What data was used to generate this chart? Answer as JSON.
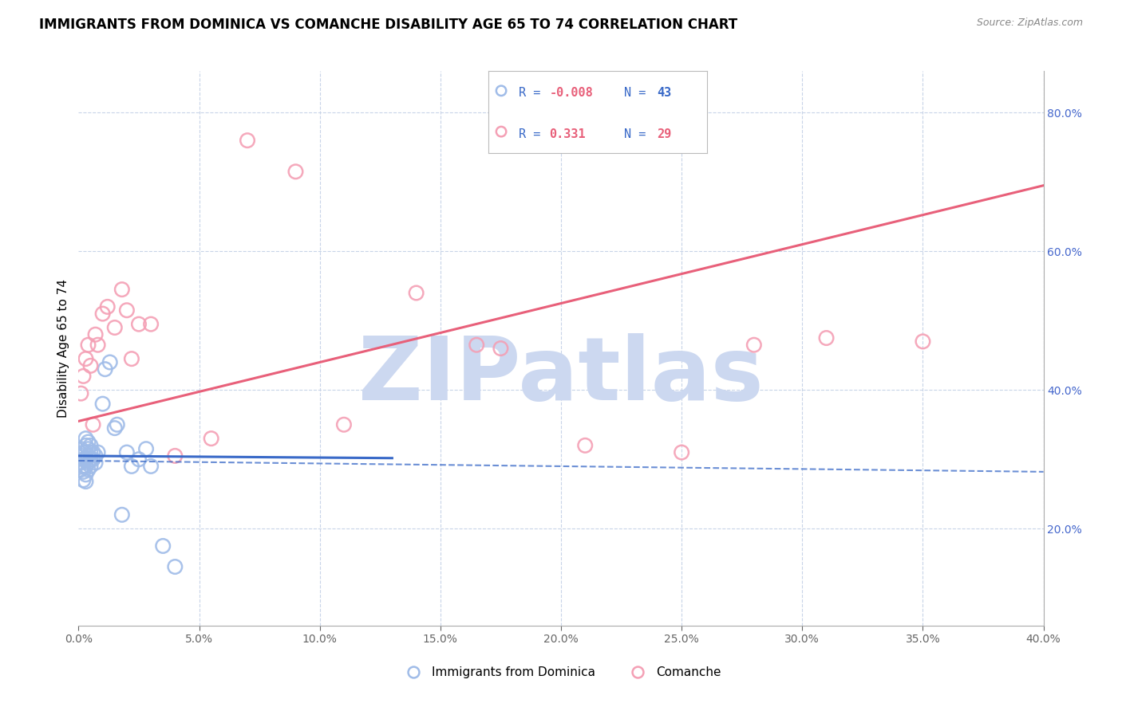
{
  "title": "IMMIGRANTS FROM DOMINICA VS COMANCHE DISABILITY AGE 65 TO 74 CORRELATION CHART",
  "source": "Source: ZipAtlas.com",
  "ylabel": "Disability Age 65 to 74",
  "xlim": [
    0.0,
    0.4
  ],
  "ylim": [
    0.06,
    0.86
  ],
  "x_ticks": [
    0.0,
    0.05,
    0.1,
    0.15,
    0.2,
    0.25,
    0.3,
    0.35,
    0.4
  ],
  "y_ticks_right": [
    0.2,
    0.4,
    0.6,
    0.8
  ],
  "blue_R": -0.008,
  "blue_N": 43,
  "pink_R": 0.331,
  "pink_N": 29,
  "blue_color": "#a0bce8",
  "pink_color": "#f4a0b5",
  "blue_line_color": "#3a6ac8",
  "pink_line_color": "#e8607a",
  "watermark": "ZIPatlas",
  "watermark_color": "#ccd8f0",
  "legend_label_blue": "Immigrants from Dominica",
  "legend_label_pink": "Comanche",
  "blue_x": [
    0.001,
    0.001,
    0.001,
    0.001,
    0.002,
    0.002,
    0.002,
    0.002,
    0.002,
    0.003,
    0.003,
    0.003,
    0.003,
    0.003,
    0.003,
    0.003,
    0.004,
    0.004,
    0.004,
    0.004,
    0.004,
    0.005,
    0.005,
    0.005,
    0.005,
    0.006,
    0.006,
    0.007,
    0.007,
    0.008,
    0.01,
    0.011,
    0.013,
    0.015,
    0.016,
    0.018,
    0.02,
    0.022,
    0.025,
    0.028,
    0.03,
    0.035,
    0.04
  ],
  "blue_y": [
    0.285,
    0.295,
    0.305,
    0.315,
    0.27,
    0.282,
    0.29,
    0.3,
    0.31,
    0.268,
    0.278,
    0.29,
    0.3,
    0.31,
    0.32,
    0.33,
    0.285,
    0.295,
    0.305,
    0.315,
    0.325,
    0.29,
    0.3,
    0.31,
    0.32,
    0.3,
    0.31,
    0.295,
    0.305,
    0.31,
    0.38,
    0.43,
    0.44,
    0.345,
    0.35,
    0.22,
    0.31,
    0.29,
    0.3,
    0.315,
    0.29,
    0.175,
    0.145
  ],
  "pink_x": [
    0.001,
    0.002,
    0.003,
    0.004,
    0.005,
    0.006,
    0.007,
    0.008,
    0.01,
    0.012,
    0.015,
    0.018,
    0.02,
    0.022,
    0.025,
    0.03,
    0.04,
    0.055,
    0.07,
    0.09,
    0.11,
    0.14,
    0.165,
    0.175,
    0.21,
    0.25,
    0.28,
    0.31,
    0.35
  ],
  "pink_y": [
    0.395,
    0.42,
    0.445,
    0.465,
    0.435,
    0.35,
    0.48,
    0.465,
    0.51,
    0.52,
    0.49,
    0.545,
    0.515,
    0.445,
    0.495,
    0.495,
    0.305,
    0.33,
    0.76,
    0.715,
    0.35,
    0.54,
    0.465,
    0.46,
    0.32,
    0.31,
    0.465,
    0.475,
    0.47
  ],
  "background_color": "#ffffff",
  "grid_color": "#c8d4e8",
  "title_fontsize": 12,
  "axis_label_fontsize": 11,
  "tick_fontsize": 10,
  "right_tick_color": "#4466cc",
  "blue_line_intercept": 0.298,
  "blue_line_slope": -0.05,
  "pink_line_x0": 0.0,
  "pink_line_y0": 0.355,
  "pink_line_x1": 0.4,
  "pink_line_y1": 0.695
}
